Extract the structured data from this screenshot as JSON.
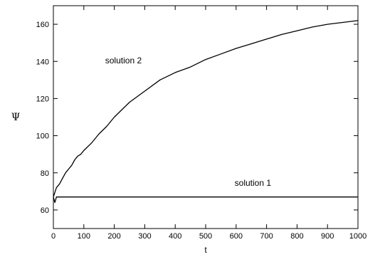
{
  "chart_data": {
    "type": "line",
    "title": "",
    "xlabel": "t",
    "ylabel": "Ψ",
    "xlim": [
      0,
      1000
    ],
    "ylim": [
      50,
      170
    ],
    "xticks": [
      0,
      100,
      200,
      300,
      400,
      500,
      600,
      700,
      800,
      900,
      1000
    ],
    "yticks": [
      60,
      80,
      100,
      120,
      140,
      160
    ],
    "grid": false,
    "legend": "none",
    "annotations": [
      {
        "text": "solution 2",
        "x": 230,
        "y": 139
      },
      {
        "text": "solution 1",
        "x": 655,
        "y": 73
      }
    ],
    "series": [
      {
        "name": "solution 1",
        "x": [
          0,
          5,
          10,
          1000
        ],
        "y": [
          67,
          64,
          67,
          67
        ]
      },
      {
        "name": "solution 2",
        "x": [
          0,
          10,
          20,
          30,
          40,
          50,
          60,
          70,
          80,
          90,
          100,
          125,
          150,
          175,
          200,
          250,
          300,
          350,
          400,
          450,
          500,
          550,
          600,
          650,
          700,
          750,
          800,
          850,
          900,
          950,
          1000
        ],
        "y": [
          67,
          72,
          74,
          77,
          80,
          82,
          84,
          87,
          89,
          90,
          92,
          96,
          101,
          105,
          110,
          118,
          124,
          130,
          134,
          137,
          141,
          144,
          147,
          149.5,
          152,
          154.5,
          156.5,
          158.5,
          160,
          161,
          162
        ]
      }
    ]
  }
}
